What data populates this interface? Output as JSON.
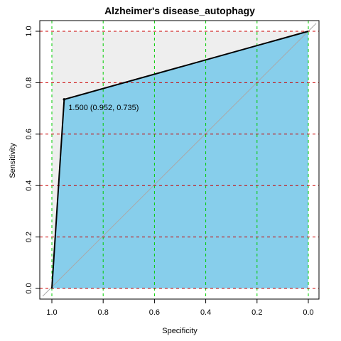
{
  "chart_data": {
    "type": "line",
    "title": "Alzheimer's disease_autophagy",
    "xlabel": "Specificity",
    "ylabel": "Sensitivity",
    "xlim": [
      1.0,
      0.0
    ],
    "ylim": [
      0.0,
      1.0
    ],
    "x_ticks": [
      1.0,
      0.8,
      0.6,
      0.4,
      0.2,
      0.0
    ],
    "x_tick_labels": [
      "1.0",
      "0.8",
      "0.6",
      "0.4",
      "0.2",
      "0.0"
    ],
    "y_ticks": [
      0.0,
      0.2,
      0.4,
      0.6,
      0.8,
      1.0
    ],
    "y_tick_labels": [
      "0.0",
      "0.2",
      "0.4",
      "0.6",
      "0.8",
      "1.0"
    ],
    "grid": true,
    "series": [
      {
        "points": [
          {
            "specificity": 1.0,
            "sensitivity": 0.0
          },
          {
            "specificity": 0.952,
            "sensitivity": 0.735
          },
          {
            "specificity": 0.0,
            "sensitivity": 1.0
          }
        ]
      }
    ],
    "threshold_point": {
      "specificity": 0.952,
      "sensitivity": 0.735
    },
    "annotation": "1.500 (0.952, 0.735)",
    "colors": {
      "auc_fill": "#87CEEB",
      "upper_fill": "#EEEEEE",
      "roc_line": "#000000",
      "diagonal": "#A9A9A9",
      "grid_x": "#00CC00",
      "grid_y": "#CC0000"
    }
  }
}
